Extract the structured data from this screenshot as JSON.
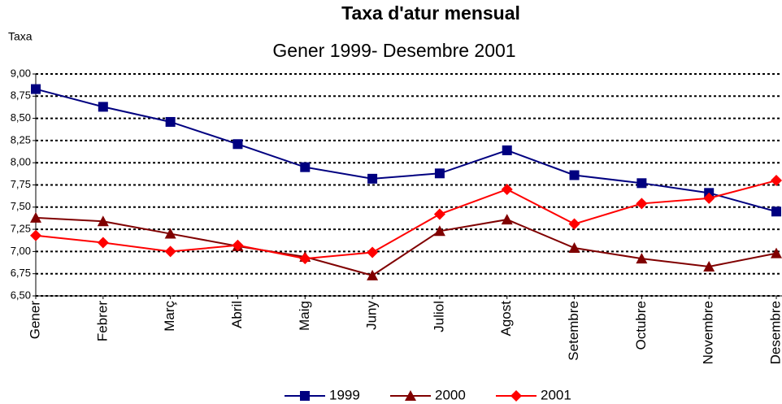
{
  "chart_data": {
    "type": "line",
    "title": "Taxa d'atur mensual",
    "subtitle": "Gener 1999- Desembre 2001",
    "y_label": "Taxa",
    "categories": [
      "Gener",
      "Febrer",
      "Març",
      "Abril",
      "Maig",
      "Juny",
      "Juliol",
      "Agost",
      "Setembre",
      "Octubre",
      "Novembre",
      "Desembre"
    ],
    "series": [
      {
        "name": "1999",
        "color": "#000080",
        "marker": "square",
        "values": [
          8.83,
          8.63,
          8.46,
          8.21,
          7.95,
          7.82,
          7.88,
          8.14,
          7.86,
          7.77,
          7.66,
          7.45
        ]
      },
      {
        "name": "2000",
        "color": "#800000",
        "marker": "triangle",
        "values": [
          7.38,
          7.34,
          7.2,
          7.06,
          6.94,
          6.73,
          7.23,
          7.36,
          7.04,
          6.92,
          6.83,
          6.98
        ]
      },
      {
        "name": "2001",
        "color": "#ff0000",
        "marker": "diamond",
        "values": [
          7.18,
          7.1,
          7.0,
          7.07,
          6.92,
          6.99,
          7.42,
          7.7,
          7.31,
          7.54,
          7.6,
          7.8
        ]
      }
    ],
    "ylim": [
      6.5,
      9.0
    ],
    "yticks": [
      {
        "value": 6.5,
        "label": "6,50"
      },
      {
        "value": 6.75,
        "label": "6,75"
      },
      {
        "value": 7.0,
        "label": "7,00"
      },
      {
        "value": 7.25,
        "label": "7,25"
      },
      {
        "value": 7.5,
        "label": "7,50"
      },
      {
        "value": 7.75,
        "label": "7,75"
      },
      {
        "value": 8.0,
        "label": "8,00"
      },
      {
        "value": 8.25,
        "label": "8,25"
      },
      {
        "value": 8.5,
        "label": "8,50"
      },
      {
        "value": 8.75,
        "label": "8,75"
      },
      {
        "value": 9.0,
        "label": "9,00"
      }
    ],
    "grid": true,
    "legend": "bottom"
  }
}
